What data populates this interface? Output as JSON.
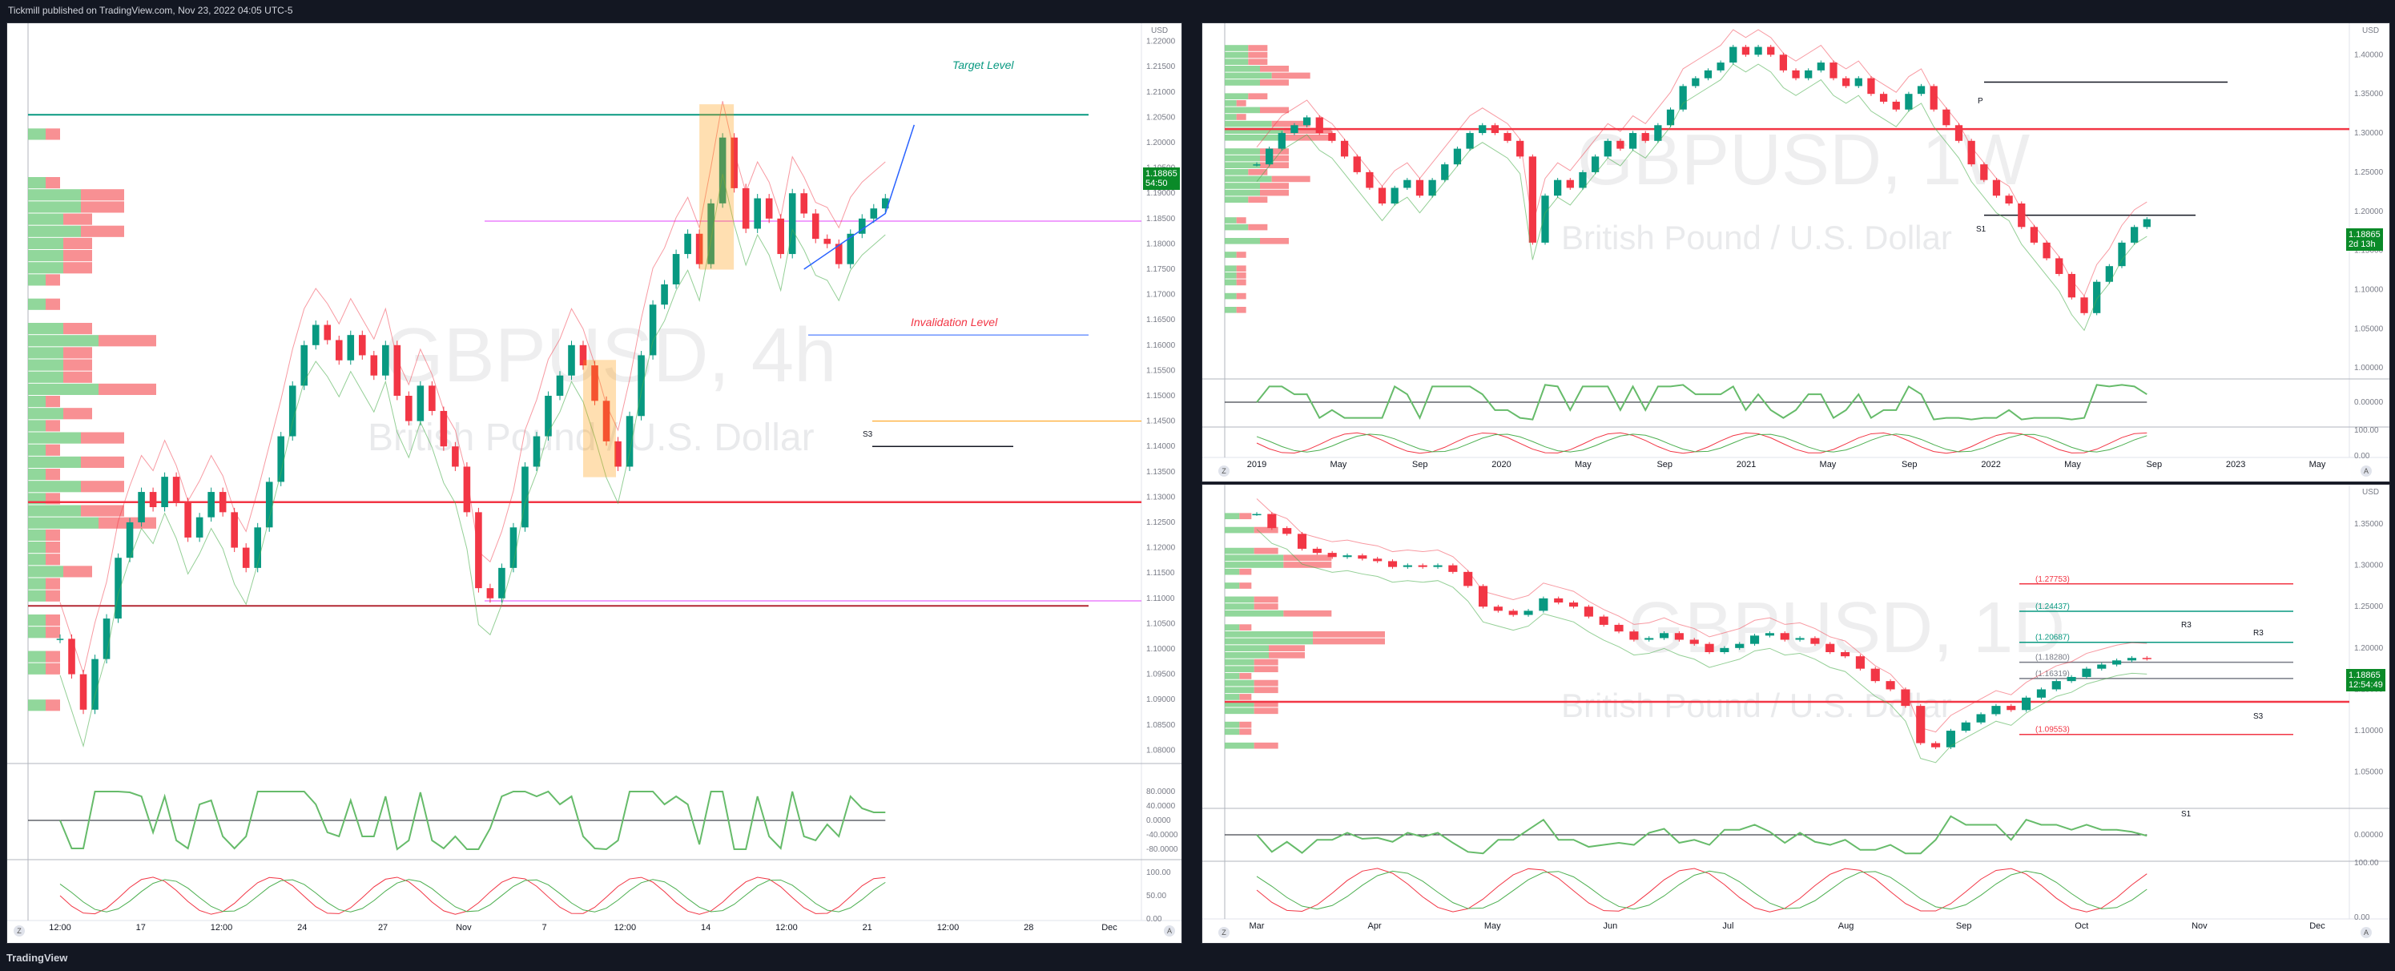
{
  "header": {
    "publisher": "Tickmill published on TradingView.com, Nov 23, 2022 04:05 UTC-5"
  },
  "footer": {
    "brand": "TradingView"
  },
  "colors": {
    "up": "#089981",
    "down": "#f23645",
    "green_line": "#4caf50",
    "red_line": "#f23645",
    "price_tag": "#0a8a28",
    "target": "#089981",
    "invalidation": "#f23645"
  },
  "chart_data": [
    {
      "id": "4h",
      "type": "line",
      "watermark_symbol": "GBPUSD, 4h",
      "watermark_desc": "British Pound / U.S. Dollar",
      "currency": "USD",
      "annotations": {
        "target": "Target Level",
        "invalidation": "Invalidation Level",
        "s3": "S3"
      },
      "price_tag": {
        "price": "1.18865",
        "countdown": "54:50"
      },
      "y_ticks": [
        "1.22000",
        "1.21500",
        "1.21000",
        "1.20500",
        "1.20000",
        "1.19500",
        "1.19000",
        "1.18500",
        "1.18000",
        "1.17500",
        "1.17000",
        "1.16500",
        "1.16000",
        "1.15500",
        "1.15000",
        "1.14500",
        "1.14000",
        "1.13500",
        "1.13000",
        "1.12500",
        "1.12000",
        "1.11500",
        "1.11000",
        "1.10500",
        "1.10000",
        "1.09500",
        "1.09000",
        "1.08500",
        "1.08000"
      ],
      "osc_ticks": [
        "80.0000",
        "40.0000",
        "0.0000",
        "-40.0000",
        "-80.0000"
      ],
      "osc2_ticks": [
        "100.00",
        "50.00",
        "0.00"
      ],
      "x_ticks": [
        "12:00",
        "17",
        "12:00",
        "24",
        "27",
        "Nov",
        "7",
        "12:00",
        "14",
        "12:00",
        "21",
        "12:00",
        "28",
        "Dec"
      ],
      "ylim": [
        1.078,
        1.222
      ],
      "levels": {
        "target": 1.2055,
        "invalidation": 1.1085,
        "upper_red": 1.129,
        "s3": 1.14,
        "orange": 1.145,
        "pink_top": 1.1845,
        "pink_low": 1.1095,
        "blue": 1.162
      },
      "closes": [
        1.102,
        1.095,
        1.088,
        1.098,
        1.106,
        1.118,
        1.125,
        1.131,
        1.128,
        1.134,
        1.129,
        1.122,
        1.126,
        1.131,
        1.127,
        1.12,
        1.116,
        1.124,
        1.133,
        1.142,
        1.152,
        1.16,
        1.164,
        1.161,
        1.157,
        1.162,
        1.158,
        1.154,
        1.16,
        1.15,
        1.145,
        1.152,
        1.147,
        1.14,
        1.136,
        1.127,
        1.112,
        1.11,
        1.116,
        1.124,
        1.136,
        1.142,
        1.15,
        1.154,
        1.16,
        1.156,
        1.149,
        1.141,
        1.136,
        1.146,
        1.158,
        1.168,
        1.172,
        1.178,
        1.182,
        1.176,
        1.188,
        1.201,
        1.191,
        1.183,
        1.189,
        1.185,
        1.178,
        1.19,
        1.186,
        1.181,
        1.18,
        1.176,
        1.182,
        1.185,
        1.187,
        1.189
      ]
    },
    {
      "id": "1w",
      "type": "line",
      "watermark_symbol": "GBPUSD, 1W",
      "watermark_desc": "British Pound / U.S. Dollar",
      "currency": "USD",
      "annotations": {
        "s1": "S1",
        "p": "P"
      },
      "price_tag": {
        "price": "1.18865",
        "countdown": "2d 13h"
      },
      "y_ticks": [
        "1.40000",
        "1.35000",
        "1.30000",
        "1.25000",
        "1.20000",
        "1.15000",
        "1.10000",
        "1.05000",
        "1.00000"
      ],
      "osc_ticks": [
        "0.00000"
      ],
      "osc2_ticks": [
        "100.00",
        "0.00"
      ],
      "x_ticks": [
        "2019",
        "May",
        "Sep",
        "2020",
        "May",
        "Sep",
        "2021",
        "May",
        "Sep",
        "2022",
        "May",
        "Sep",
        "2023",
        "May"
      ],
      "ylim": [
        0.99,
        1.43
      ],
      "levels": {
        "red": 1.305,
        "s1": 1.195,
        "p": 1.365
      },
      "closes": [
        1.26,
        1.28,
        1.3,
        1.31,
        1.32,
        1.3,
        1.29,
        1.27,
        1.25,
        1.23,
        1.21,
        1.23,
        1.24,
        1.22,
        1.24,
        1.26,
        1.28,
        1.3,
        1.31,
        1.3,
        1.29,
        1.27,
        1.16,
        1.22,
        1.24,
        1.23,
        1.25,
        1.27,
        1.29,
        1.28,
        1.3,
        1.29,
        1.31,
        1.33,
        1.36,
        1.37,
        1.38,
        1.39,
        1.41,
        1.4,
        1.41,
        1.4,
        1.38,
        1.37,
        1.38,
        1.39,
        1.37,
        1.36,
        1.37,
        1.35,
        1.34,
        1.33,
        1.35,
        1.36,
        1.33,
        1.31,
        1.29,
        1.26,
        1.24,
        1.22,
        1.21,
        1.18,
        1.16,
        1.14,
        1.12,
        1.09,
        1.07,
        1.11,
        1.13,
        1.16,
        1.18,
        1.19
      ]
    },
    {
      "id": "1d",
      "type": "line",
      "watermark_symbol": "GBPUSD, 1D",
      "watermark_desc": "British Pound / U.S. Dollar",
      "currency": "USD",
      "annotations": {
        "r3": "R3",
        "s3": "S3",
        "s1": "S1"
      },
      "price_tag": {
        "price": "1.18865",
        "countdown": "12:54:49"
      },
      "level_labels": [
        "(1.27753)",
        "(1.24437)",
        "(1.20687)",
        "(1.18280)",
        "(1.16319)",
        "(1.09553)"
      ],
      "y_ticks": [
        "1.35000",
        "1.30000",
        "1.25000",
        "1.20000",
        "1.15000",
        "1.10000",
        "1.05000"
      ],
      "osc_ticks": [
        "0.00000"
      ],
      "osc2_ticks": [
        "100.00",
        "0.00"
      ],
      "x_ticks": [
        "Mar",
        "Apr",
        "May",
        "Jun",
        "Jul",
        "Aug",
        "Sep",
        "Oct",
        "Nov",
        "Dec"
      ],
      "ylim": [
        1.01,
        1.38
      ],
      "levels": {
        "l1": 1.27753,
        "l2": 1.24437,
        "l3": 1.20687,
        "l4": 1.1828,
        "l5": 1.16319,
        "l6": 1.09553,
        "red": 1.135
      },
      "closes": [
        1.362,
        1.345,
        1.338,
        1.32,
        1.315,
        1.31,
        1.312,
        1.308,
        1.305,
        1.298,
        1.3,
        1.298,
        1.3,
        1.292,
        1.275,
        1.25,
        1.245,
        1.24,
        1.245,
        1.26,
        1.255,
        1.25,
        1.238,
        1.228,
        1.22,
        1.21,
        1.212,
        1.218,
        1.21,
        1.205,
        1.195,
        1.2,
        1.205,
        1.215,
        1.218,
        1.21,
        1.212,
        1.205,
        1.195,
        1.19,
        1.175,
        1.16,
        1.15,
        1.13,
        1.085,
        1.08,
        1.1,
        1.11,
        1.12,
        1.13,
        1.125,
        1.14,
        1.15,
        1.16,
        1.165,
        1.175,
        1.18,
        1.185,
        1.188,
        1.187
      ]
    }
  ]
}
